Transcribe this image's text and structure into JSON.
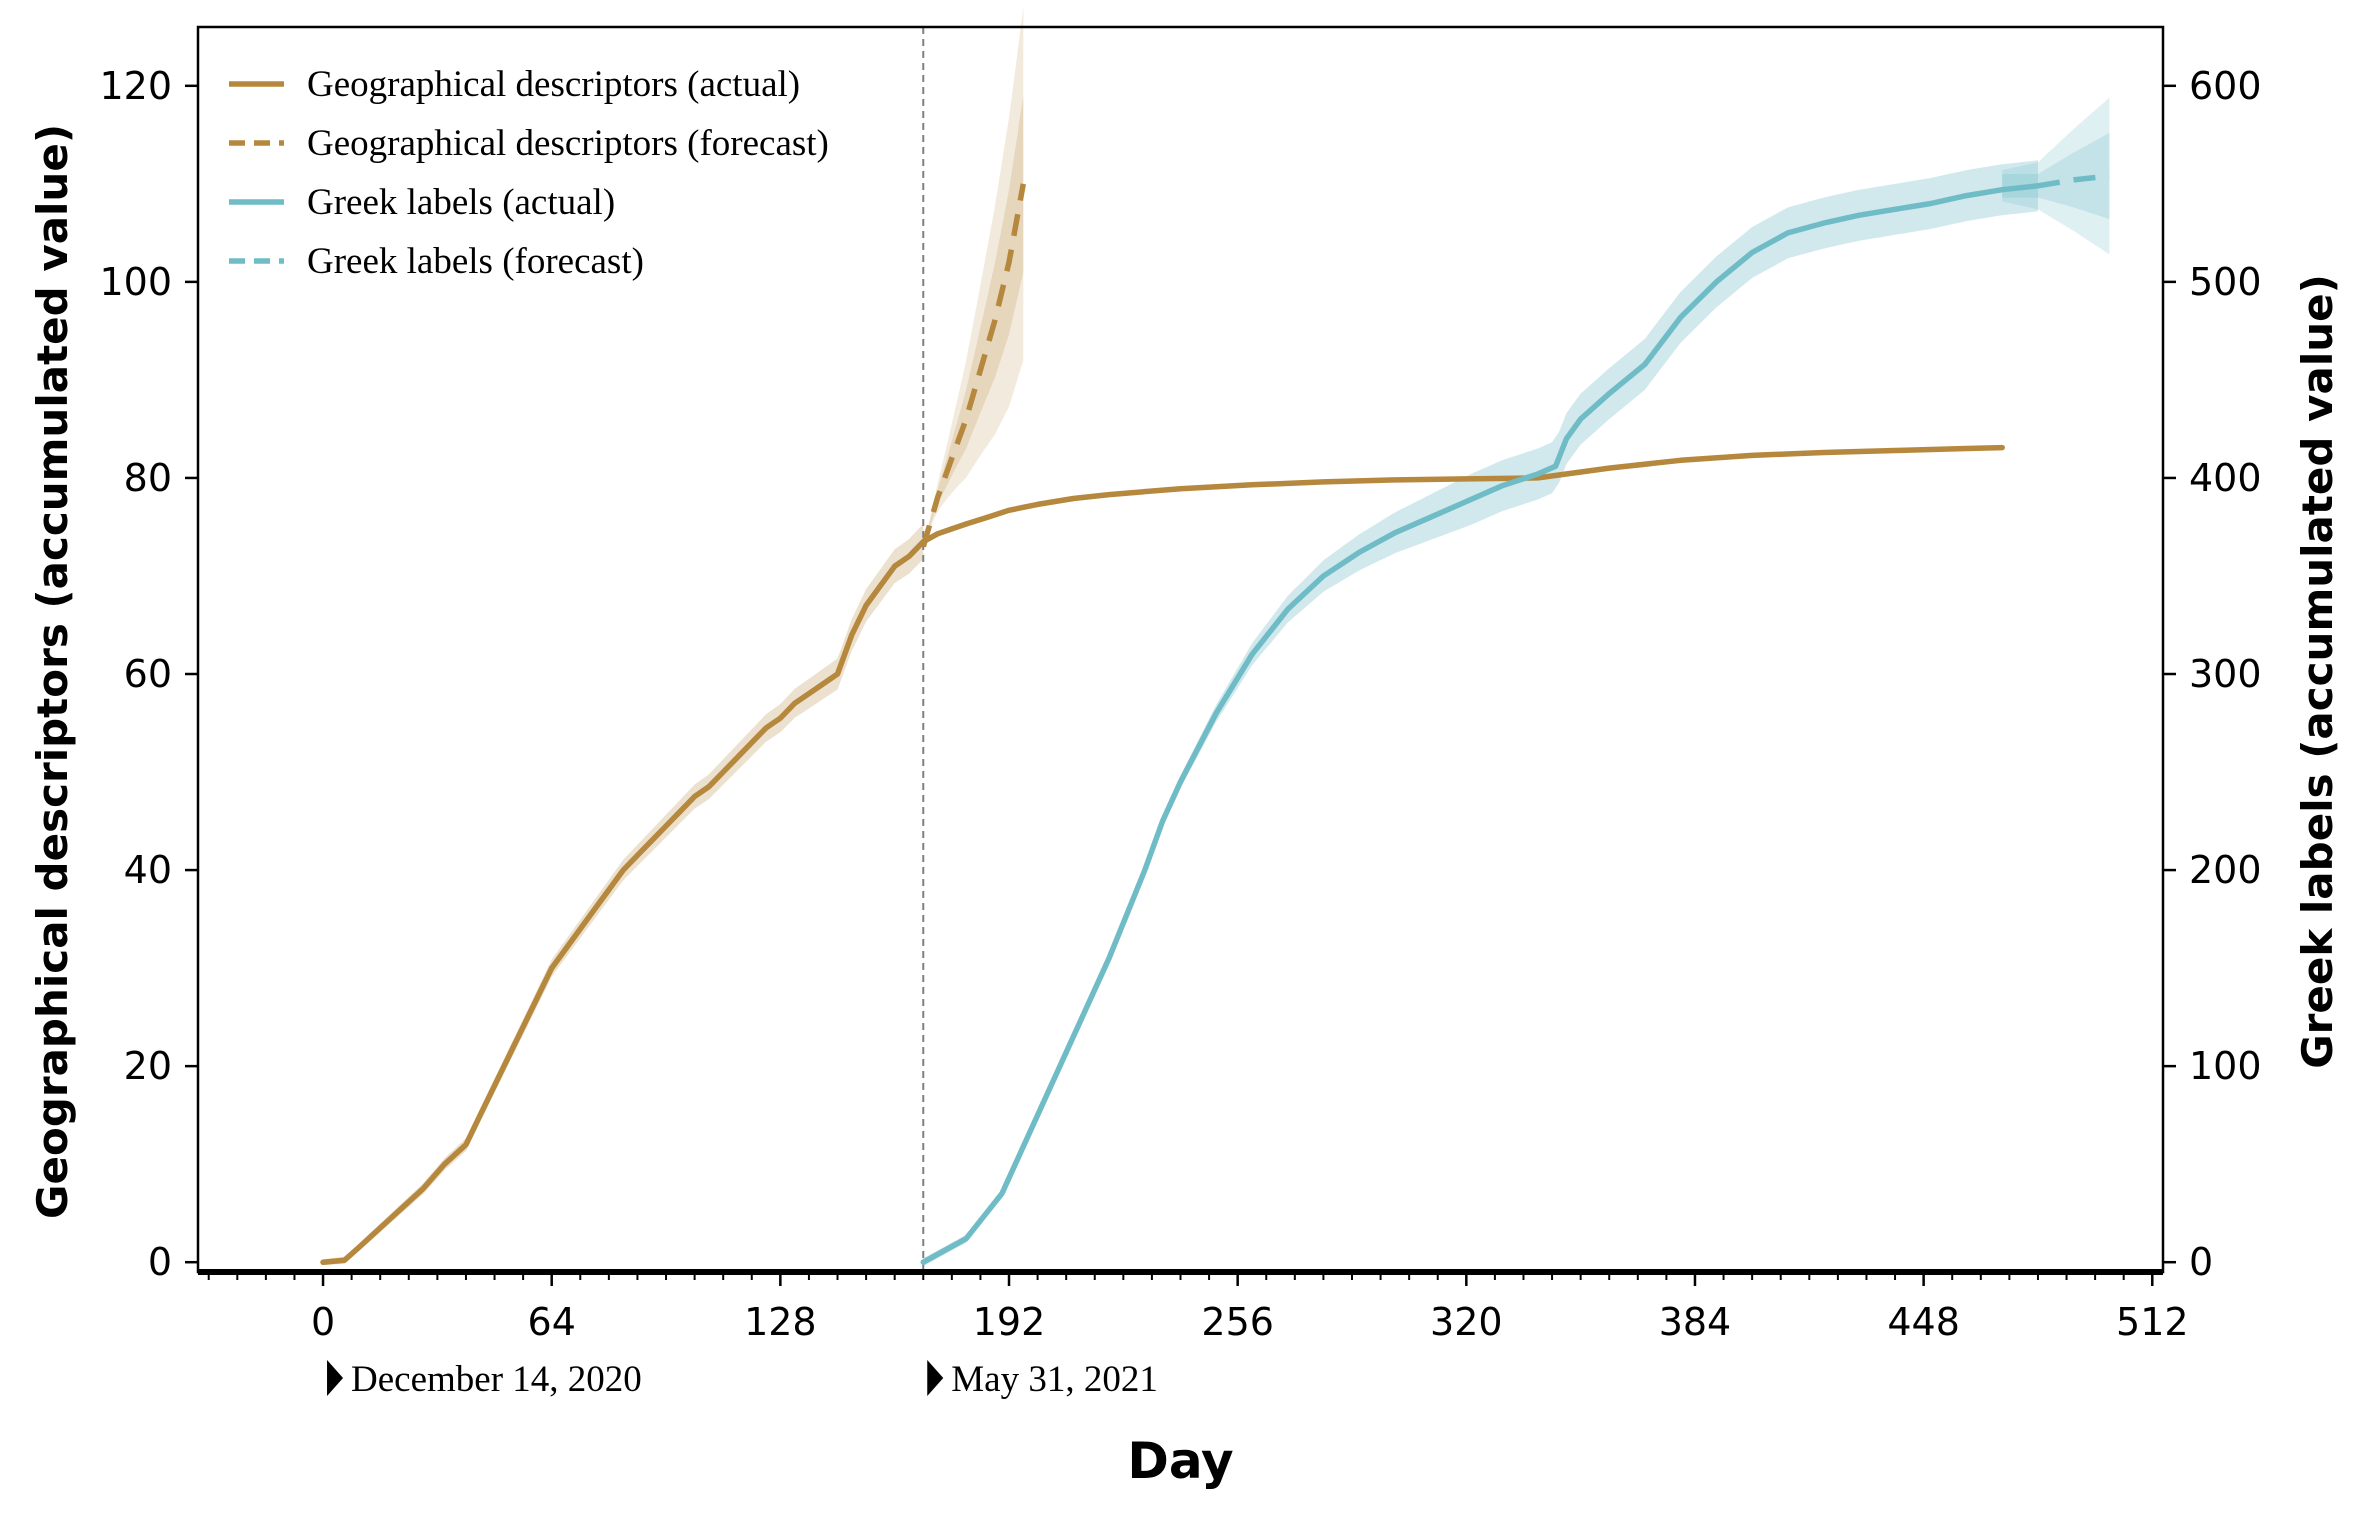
{
  "chart_data": {
    "type": "line",
    "xlabel": "Day",
    "ylabel_left": "Geographical descriptors (accumulated value)",
    "ylabel_right": "Greek labels (accumulated value)",
    "xlim": [
      -35,
      515
    ],
    "ylim_left": [
      -1,
      126
    ],
    "ylim_right": [
      -5,
      630
    ],
    "x_ticks": [
      0,
      64,
      128,
      192,
      256,
      320,
      384,
      448,
      512
    ],
    "y_ticks_left": [
      0,
      20,
      40,
      60,
      80,
      100,
      120
    ],
    "y_ticks_right": [
      0,
      100,
      200,
      300,
      400,
      500,
      600
    ],
    "legend_position": "top-left",
    "legend": [
      "Geographical descriptors (actual)",
      "Geographical descriptors (forecast)",
      "Greek labels (actual)",
      "Greek labels (forecast)"
    ],
    "date_markers": [
      {
        "x": 0,
        "label": "December 14, 2020"
      },
      {
        "x": 168,
        "label": "May 31, 2021"
      }
    ],
    "vertical_line_x": 168,
    "colors": {
      "geo": "#b5883e",
      "greek": "#6fbcc7",
      "divider": "#808080"
    },
    "series": [
      {
        "name": "Geographical descriptors (actual)",
        "axis": "left",
        "style": "solid",
        "x": [
          0,
          6,
          10,
          16,
          22,
          28,
          34,
          40,
          44,
          48,
          52,
          56,
          60,
          64,
          68,
          72,
          76,
          80,
          84,
          88,
          92,
          96,
          100,
          104,
          108,
          112,
          116,
          120,
          124,
          128,
          132,
          136,
          140,
          144,
          148,
          152,
          156,
          160,
          164,
          168,
          172,
          176,
          180,
          186,
          192,
          200,
          210,
          220,
          240,
          260,
          280,
          300,
          320,
          340,
          360,
          380,
          400,
          420,
          440,
          460,
          470
        ],
        "y": [
          0,
          0.2,
          1.5,
          3.5,
          5.5,
          7.5,
          10,
          12,
          15,
          18,
          21,
          24,
          27,
          30,
          32,
          34,
          36,
          38,
          40,
          41.5,
          43,
          44.5,
          46,
          47.5,
          48.5,
          50,
          51.5,
          53,
          54.5,
          55.5,
          57,
          58,
          59,
          60,
          64,
          67,
          69,
          71,
          72,
          73.5,
          74.3,
          74.8,
          75.3,
          76,
          76.7,
          77.3,
          77.9,
          78.3,
          78.9,
          79.3,
          79.6,
          79.8,
          79.9,
          80,
          81,
          81.8,
          82.3,
          82.6,
          82.8,
          83,
          83.1
        ]
      },
      {
        "name": "Geographical descriptors (forecast)",
        "axis": "left",
        "style": "dashed",
        "x": [
          168,
          172,
          176,
          180,
          184,
          188,
          192,
          196
        ],
        "y": [
          73,
          78,
          82,
          86,
          91,
          96,
          102,
          110
        ]
      },
      {
        "name": "Greek labels (actual)",
        "axis": "right",
        "style": "solid",
        "x": [
          168,
          180,
          190,
          200,
          210,
          220,
          230,
          235,
          240,
          250,
          260,
          270,
          280,
          290,
          300,
          310,
          320,
          330,
          340,
          345,
          348,
          352,
          360,
          370,
          380,
          390,
          400,
          410,
          420,
          430,
          440,
          450,
          460,
          470,
          480
        ],
        "y": [
          0,
          12,
          35,
          75,
          115,
          155,
          200,
          225,
          245,
          280,
          310,
          333,
          350,
          362,
          372,
          380,
          388,
          396,
          402,
          406,
          420,
          430,
          443,
          458,
          482,
          500,
          515,
          525,
          530,
          534,
          537,
          540,
          544,
          547,
          549
        ]
      },
      {
        "name": "Greek labels (forecast)",
        "axis": "right",
        "style": "dashed",
        "x": [
          480,
          490,
          500
        ],
        "y": [
          549,
          552,
          554
        ]
      }
    ]
  }
}
